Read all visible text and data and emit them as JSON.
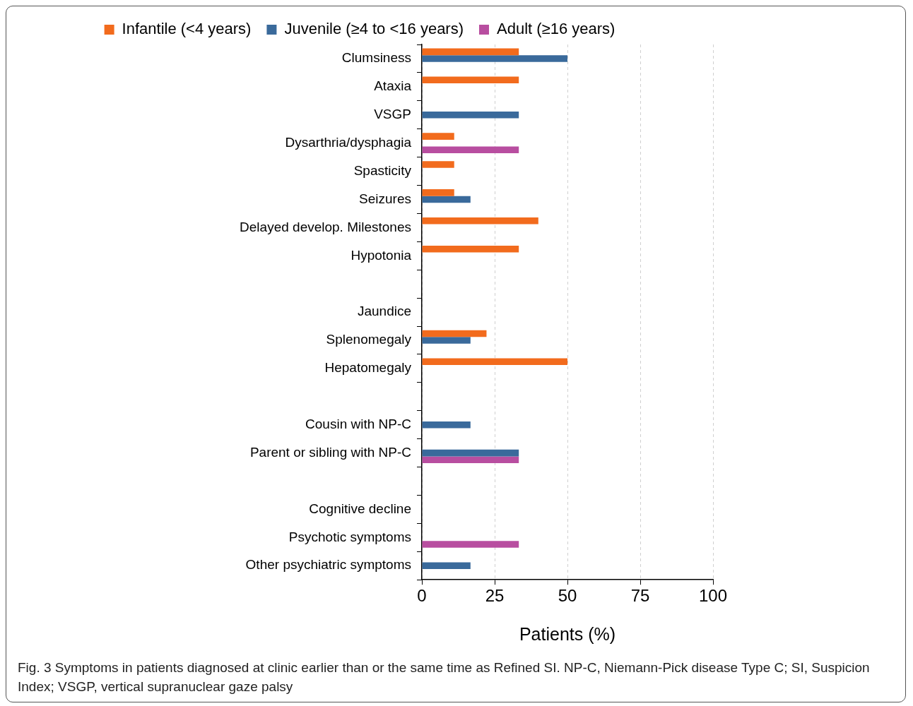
{
  "chart_data": {
    "type": "bar",
    "orientation": "horizontal",
    "xlabel": "Patients (%)",
    "categories": [
      "Clumsiness",
      "Ataxia",
      "VSGP",
      "Dysarthria/dysphagia",
      "Spasticity",
      "Seizures",
      "Delayed develop. Milestones",
      "Hypotonia",
      null,
      "Jaundice",
      "Splenomegaly",
      "Hepatomegaly",
      null,
      "Cousin with NP-C",
      "Parent or sibling with NP-C",
      null,
      "Cognitive decline",
      "Psychotic symptoms",
      "Other psychiatric symptoms"
    ],
    "series": [
      {
        "name": "Infantile (<4 years)",
        "color": "#f26b1d",
        "values": [
          33.3,
          33.3,
          null,
          11.1,
          11.1,
          11.1,
          40,
          33.3,
          null,
          null,
          22.2,
          50,
          null,
          null,
          null,
          null,
          null,
          null,
          null
        ]
      },
      {
        "name": "Juvenile (≥4 to <16 years)",
        "color": "#3a6a9b",
        "values": [
          50,
          null,
          33.3,
          null,
          null,
          16.7,
          null,
          null,
          null,
          null,
          16.7,
          null,
          null,
          16.7,
          33.3,
          null,
          null,
          null,
          16.7
        ]
      },
      {
        "name": "Adult (≥16 years)",
        "color": "#b84ea0",
        "values": [
          null,
          null,
          null,
          33.3,
          null,
          null,
          null,
          null,
          null,
          null,
          null,
          null,
          null,
          null,
          33.3,
          null,
          null,
          33.3,
          null
        ]
      }
    ],
    "xlim": [
      0,
      100
    ],
    "xticks": [
      0,
      25,
      50,
      75,
      100
    ],
    "grid": "x",
    "legend": "top",
    "annotations": [
      "Fig. 3 Symptoms in patients diagnosed at clinic earlier than or the same time as Refined SI. NP-C, Niemann-Pick disease Type C; SI, Suspicion Index; VSGP, vertical supranuclear gaze palsy"
    ]
  }
}
